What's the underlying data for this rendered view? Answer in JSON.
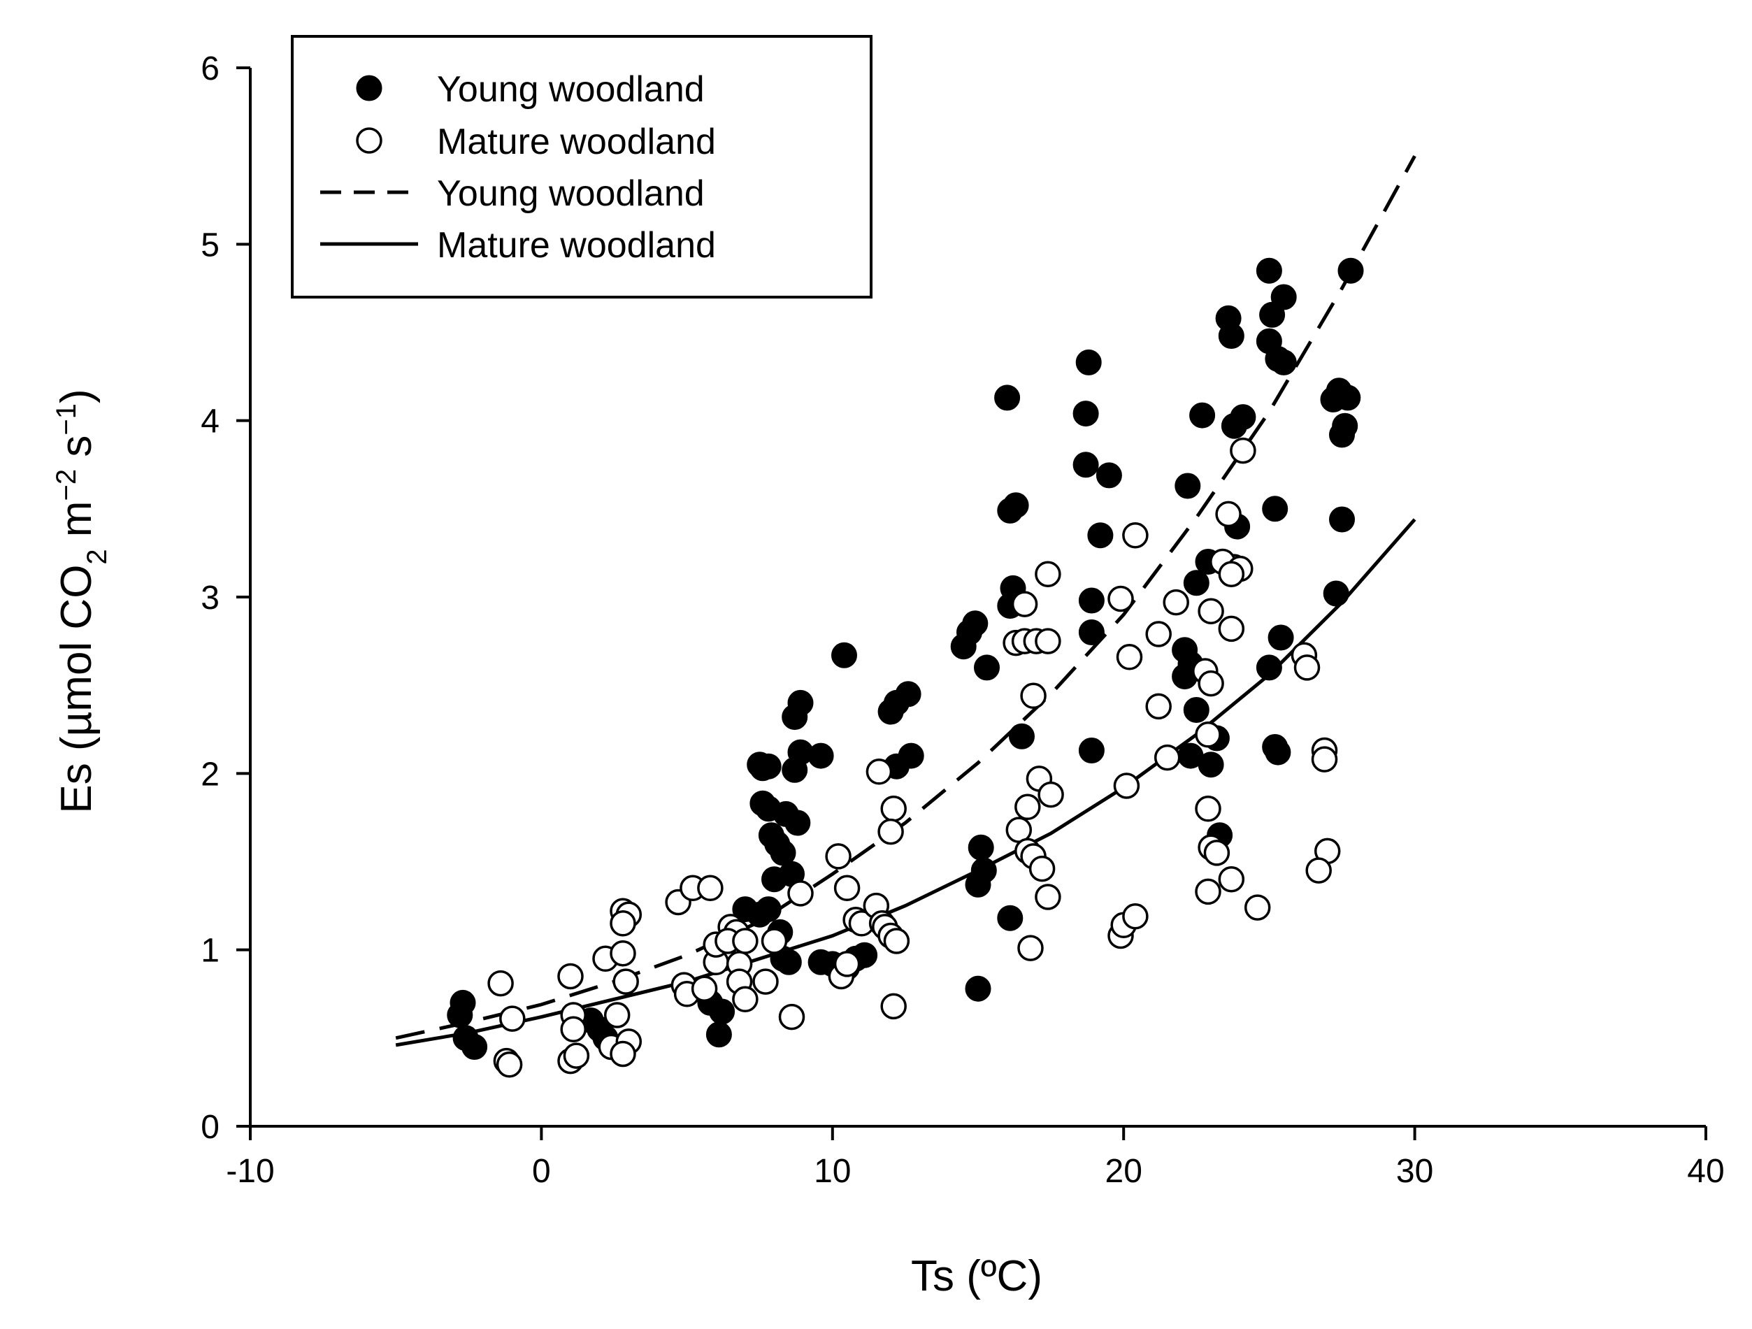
{
  "chart_data": {
    "type": "scatter",
    "title": "",
    "xlabel": "Ts (ºC)",
    "ylabel": {
      "prefix": "Es (µmol CO",
      "sub": "2",
      "unit_m": " m",
      "sup_m": "−2",
      "unit_s": " s",
      "sup_s": "−1",
      "suffix": ")"
    },
    "xlim": [
      -10,
      40
    ],
    "ylim": [
      0,
      6
    ],
    "xticks": [
      -10,
      0,
      10,
      20,
      30,
      40
    ],
    "yticks": [
      0,
      1,
      2,
      3,
      4,
      5,
      6
    ],
    "xtick_labels": [
      "-10",
      "0",
      "10",
      "20",
      "30",
      "40"
    ],
    "ytick_labels": [
      "0",
      "1",
      "2",
      "3",
      "4",
      "5",
      "6"
    ],
    "legend_position": "top-left",
    "legend": [
      {
        "label": "Young woodland",
        "kind": "marker-filled"
      },
      {
        "label": "Mature woodland",
        "kind": "marker-open"
      },
      {
        "label": "Young woodland",
        "kind": "line-dashed"
      },
      {
        "label": "Mature woodland",
        "kind": "line-solid"
      }
    ],
    "series": [
      {
        "name": "Young woodland",
        "kind": "scatter",
        "marker": "filled",
        "points": [
          [
            -2.7,
            0.7
          ],
          [
            -2.8,
            0.63
          ],
          [
            -2.6,
            0.5
          ],
          [
            -2.3,
            0.45
          ],
          [
            1.7,
            0.6
          ],
          [
            2.0,
            0.55
          ],
          [
            2.2,
            0.5
          ],
          [
            5.8,
            0.7
          ],
          [
            6.2,
            0.65
          ],
          [
            6.1,
            0.52
          ],
          [
            7.0,
            1.23
          ],
          [
            7.5,
            1.2
          ],
          [
            7.8,
            1.23
          ],
          [
            8.2,
            1.1
          ],
          [
            8.3,
            0.95
          ],
          [
            8.5,
            0.93
          ],
          [
            7.5,
            2.05
          ],
          [
            7.6,
            2.03
          ],
          [
            7.8,
            2.04
          ],
          [
            7.6,
            1.83
          ],
          [
            7.8,
            1.8
          ],
          [
            7.9,
            1.65
          ],
          [
            8.1,
            1.6
          ],
          [
            8.3,
            1.55
          ],
          [
            8.0,
            1.4
          ],
          [
            8.6,
            1.43
          ],
          [
            8.4,
            1.77
          ],
          [
            8.8,
            1.72
          ],
          [
            8.7,
            2.32
          ],
          [
            8.9,
            2.4
          ],
          [
            8.7,
            2.02
          ],
          [
            8.9,
            2.12
          ],
          [
            9.6,
            2.1
          ],
          [
            10.4,
            2.67
          ],
          [
            9.6,
            0.93
          ],
          [
            10.0,
            0.92
          ],
          [
            10.5,
            0.9
          ],
          [
            10.8,
            0.95
          ],
          [
            11.1,
            0.97
          ],
          [
            12.0,
            2.35
          ],
          [
            12.2,
            2.4
          ],
          [
            12.6,
            2.45
          ],
          [
            12.2,
            2.04
          ],
          [
            12.7,
            2.1
          ],
          [
            14.5,
            2.72
          ],
          [
            14.7,
            2.8
          ],
          [
            14.9,
            2.85
          ],
          [
            15.3,
            2.6
          ],
          [
            15.1,
            1.58
          ],
          [
            15.2,
            1.45
          ],
          [
            15.0,
            1.37
          ],
          [
            15.0,
            0.78
          ],
          [
            16.0,
            4.13
          ],
          [
            16.1,
            3.49
          ],
          [
            16.3,
            3.52
          ],
          [
            16.2,
            3.05
          ],
          [
            16.1,
            2.95
          ],
          [
            16.5,
            2.21
          ],
          [
            16.1,
            1.18
          ],
          [
            18.8,
            4.33
          ],
          [
            18.7,
            4.04
          ],
          [
            18.7,
            3.75
          ],
          [
            19.5,
            3.69
          ],
          [
            19.2,
            3.35
          ],
          [
            18.9,
            2.98
          ],
          [
            18.9,
            2.8
          ],
          [
            18.9,
            2.13
          ],
          [
            22.2,
            3.63
          ],
          [
            22.7,
            4.03
          ],
          [
            22.5,
            3.08
          ],
          [
            22.9,
            3.2
          ],
          [
            22.1,
            2.7
          ],
          [
            22.1,
            2.55
          ],
          [
            22.5,
            2.36
          ],
          [
            22.3,
            2.62
          ],
          [
            23.2,
            2.2
          ],
          [
            22.3,
            2.1
          ],
          [
            23.0,
            2.05
          ],
          [
            23.3,
            1.65
          ],
          [
            23.6,
            4.58
          ],
          [
            23.7,
            4.48
          ],
          [
            23.8,
            3.97
          ],
          [
            24.1,
            4.02
          ],
          [
            23.9,
            3.4
          ],
          [
            25.0,
            4.85
          ],
          [
            25.1,
            4.6
          ],
          [
            25.0,
            4.45
          ],
          [
            25.3,
            4.35
          ],
          [
            25.5,
            4.7
          ],
          [
            25.5,
            4.33
          ],
          [
            25.2,
            3.5
          ],
          [
            25.4,
            2.77
          ],
          [
            25.0,
            2.6
          ],
          [
            25.2,
            2.15
          ],
          [
            25.3,
            2.12
          ],
          [
            27.4,
            4.17
          ],
          [
            27.2,
            4.12
          ],
          [
            27.7,
            4.13
          ],
          [
            27.6,
            3.97
          ],
          [
            27.5,
            3.92
          ],
          [
            27.5,
            3.44
          ],
          [
            27.3,
            3.02
          ],
          [
            27.8,
            4.85
          ]
        ]
      },
      {
        "name": "Mature woodland",
        "kind": "scatter",
        "marker": "open",
        "points": [
          [
            -1.4,
            0.81
          ],
          [
            -1.0,
            0.61
          ],
          [
            -1.2,
            0.37
          ],
          [
            -1.1,
            0.35
          ],
          [
            1.0,
            0.85
          ],
          [
            1.1,
            0.63
          ],
          [
            1.1,
            0.55
          ],
          [
            1.0,
            0.37
          ],
          [
            1.2,
            0.4
          ],
          [
            2.2,
            0.95
          ],
          [
            2.8,
            0.98
          ],
          [
            2.8,
            1.22
          ],
          [
            3.0,
            1.2
          ],
          [
            2.8,
            1.15
          ],
          [
            2.6,
            0.63
          ],
          [
            2.4,
            0.45
          ],
          [
            2.9,
            0.82
          ],
          [
            3.0,
            0.48
          ],
          [
            2.8,
            0.41
          ],
          [
            4.7,
            1.27
          ],
          [
            5.2,
            1.35
          ],
          [
            5.8,
            1.35
          ],
          [
            4.9,
            0.8
          ],
          [
            5.0,
            0.75
          ],
          [
            5.6,
            0.78
          ],
          [
            6.0,
            0.93
          ],
          [
            6.0,
            1.03
          ],
          [
            6.5,
            1.13
          ],
          [
            6.7,
            1.1
          ],
          [
            6.4,
            1.05
          ],
          [
            6.8,
            0.92
          ],
          [
            7.0,
            1.05
          ],
          [
            6.8,
            0.82
          ],
          [
            7.0,
            0.72
          ],
          [
            8.0,
            1.05
          ],
          [
            7.7,
            0.82
          ],
          [
            8.6,
            0.62
          ],
          [
            8.9,
            1.32
          ],
          [
            10.2,
            1.53
          ],
          [
            10.5,
            1.35
          ],
          [
            10.3,
            0.85
          ],
          [
            10.5,
            0.92
          ],
          [
            10.8,
            1.17
          ],
          [
            11.0,
            1.15
          ],
          [
            11.5,
            1.25
          ],
          [
            11.7,
            1.15
          ],
          [
            11.8,
            1.13
          ],
          [
            12.0,
            1.08
          ],
          [
            12.2,
            1.05
          ],
          [
            12.1,
            0.68
          ],
          [
            11.6,
            2.01
          ],
          [
            12.1,
            1.8
          ],
          [
            12.0,
            1.67
          ],
          [
            16.6,
            2.96
          ],
          [
            17.4,
            3.13
          ],
          [
            16.3,
            2.74
          ],
          [
            16.6,
            2.75
          ],
          [
            17.0,
            2.75
          ],
          [
            17.4,
            2.75
          ],
          [
            16.9,
            2.44
          ],
          [
            16.4,
            1.68
          ],
          [
            16.7,
            1.81
          ],
          [
            17.1,
            1.97
          ],
          [
            17.5,
            1.88
          ],
          [
            16.7,
            1.56
          ],
          [
            16.9,
            1.53
          ],
          [
            17.2,
            1.46
          ],
          [
            17.4,
            1.3
          ],
          [
            16.8,
            1.01
          ],
          [
            19.9,
            2.99
          ],
          [
            20.2,
            2.66
          ],
          [
            20.4,
            3.35
          ],
          [
            20.1,
            1.93
          ],
          [
            19.9,
            1.08
          ],
          [
            20.0,
            1.14
          ],
          [
            20.4,
            1.19
          ],
          [
            21.2,
            2.79
          ],
          [
            21.8,
            2.97
          ],
          [
            21.2,
            2.38
          ],
          [
            21.5,
            2.09
          ],
          [
            23.0,
            2.92
          ],
          [
            22.8,
            2.58
          ],
          [
            23.0,
            2.51
          ],
          [
            22.9,
            2.22
          ],
          [
            22.9,
            1.8
          ],
          [
            23.0,
            1.58
          ],
          [
            23.2,
            1.55
          ],
          [
            22.9,
            1.33
          ],
          [
            23.6,
            3.47
          ],
          [
            23.8,
            3.17
          ],
          [
            23.4,
            3.2
          ],
          [
            24.0,
            3.16
          ],
          [
            23.7,
            3.13
          ],
          [
            24.1,
            3.83
          ],
          [
            23.7,
            2.82
          ],
          [
            23.7,
            1.4
          ],
          [
            24.6,
            1.24
          ],
          [
            26.2,
            2.67
          ],
          [
            26.3,
            2.6
          ],
          [
            26.9,
            2.13
          ],
          [
            26.9,
            2.08
          ],
          [
            27.0,
            1.56
          ],
          [
            26.7,
            1.45
          ]
        ]
      },
      {
        "name": "Young woodland",
        "kind": "fit",
        "style": "dashed",
        "x": [
          -5,
          -2.5,
          0,
          2.5,
          5,
          7.5,
          10,
          12.5,
          15,
          17.5,
          20,
          22.5,
          25,
          27.5,
          30
        ],
        "y": [
          0.5,
          0.59,
          0.69,
          0.82,
          0.97,
          1.16,
          1.43,
          1.72,
          2.06,
          2.45,
          2.9,
          3.45,
          4.05,
          4.75,
          5.5
        ]
      },
      {
        "name": "Mature woodland",
        "kind": "fit",
        "style": "solid",
        "x": [
          -5,
          -2.5,
          0,
          2.5,
          5,
          7.5,
          10,
          12.5,
          15,
          17.5,
          20,
          22.5,
          25,
          27.5,
          30
        ],
        "y": [
          0.46,
          0.53,
          0.62,
          0.72,
          0.82,
          0.95,
          1.08,
          1.25,
          1.45,
          1.66,
          1.92,
          2.22,
          2.56,
          2.97,
          3.44
        ]
      }
    ]
  }
}
